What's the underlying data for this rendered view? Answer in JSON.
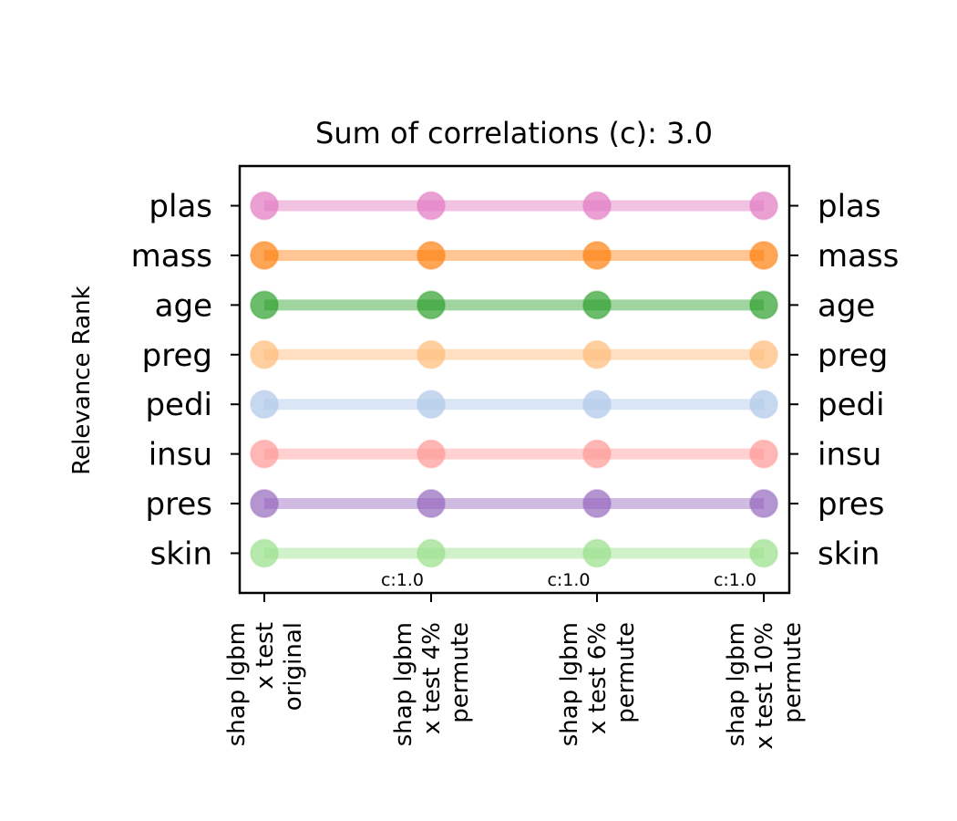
{
  "chart_data": {
    "type": "line",
    "title": "Sum of correlations (c): 3.0",
    "ylabel": "Relevance Rank",
    "xlabel": "",
    "x": [
      [
        "shap lgbm",
        "x test",
        "original"
      ],
      [
        "shap lgbm",
        "x test 4%",
        "permute"
      ],
      [
        "shap lgbm",
        "x test 6%",
        "permute"
      ],
      [
        "shap lgbm",
        "x test 10%",
        "permute"
      ]
    ],
    "rank_labels_top_to_bottom": [
      "plas",
      "mass",
      "age",
      "preg",
      "pedi",
      "insu",
      "pres",
      "skin"
    ],
    "correlation_annotations": [
      "c:1.0",
      "c:1.0",
      "c:1.0"
    ],
    "series": [
      {
        "name": "plas",
        "color": "#e377c2",
        "values": [
          1,
          1,
          1,
          1
        ]
      },
      {
        "name": "mass",
        "color": "#ff7f0e",
        "values": [
          2,
          2,
          2,
          2
        ]
      },
      {
        "name": "age",
        "color": "#2ca02c",
        "values": [
          3,
          3,
          3,
          3
        ]
      },
      {
        "name": "preg",
        "color": "#ffbb78",
        "values": [
          4,
          4,
          4,
          4
        ]
      },
      {
        "name": "pedi",
        "color": "#aec7e8",
        "values": [
          5,
          5,
          5,
          5
        ]
      },
      {
        "name": "insu",
        "color": "#ff9896",
        "values": [
          6,
          6,
          6,
          6
        ]
      },
      {
        "name": "pres",
        "color": "#9467bd",
        "values": [
          7,
          7,
          7,
          7
        ]
      },
      {
        "name": "skin",
        "color": "#98df8a",
        "values": [
          8,
          8,
          8,
          8
        ]
      }
    ],
    "ylim": [
      8.8,
      0.2
    ],
    "grid": false,
    "legend": "none"
  }
}
